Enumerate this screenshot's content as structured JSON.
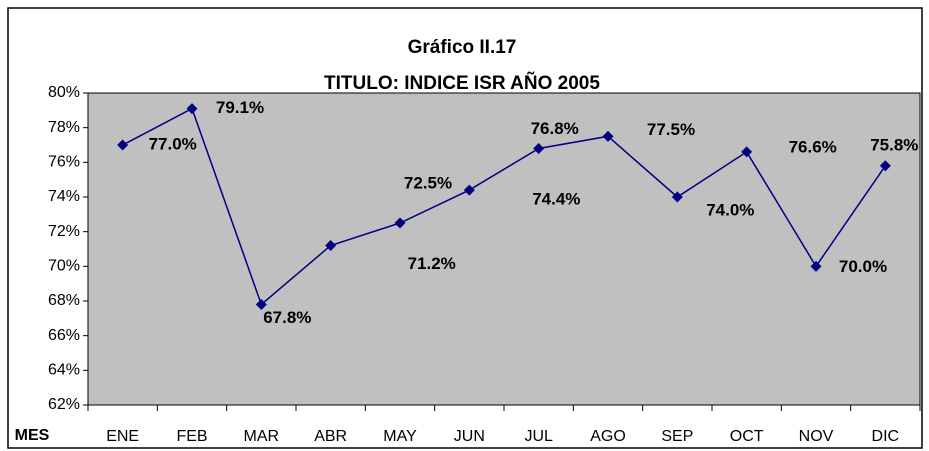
{
  "chart_data": {
    "type": "line",
    "title": "Gráfico II.17",
    "subtitle": "TITULO: INDICE ISR AÑO 2005",
    "x_label": "MES",
    "categories": [
      "ENE",
      "FEB",
      "MAR",
      "ABR",
      "MAY",
      "JUN",
      "JUL",
      "AGO",
      "SEP",
      "OCT",
      "NOV",
      "DIC"
    ],
    "series": [
      {
        "name": "INDICE ISR",
        "color": "#000080",
        "values": [
          77.0,
          79.1,
          67.8,
          71.2,
          72.5,
          74.4,
          76.8,
          77.5,
          74.0,
          76.6,
          70.0,
          75.8
        ],
        "value_labels": [
          "77.0%",
          "79.1%",
          "67.8%",
          "71.2%",
          "72.5%",
          "74.4%",
          "76.8%",
          "77.5%",
          "74.0%",
          "76.6%",
          "70.0%",
          "75.8%"
        ]
      }
    ],
    "ylim": [
      62,
      80
    ],
    "yticks": [
      {
        "value": 62,
        "label": "62%"
      },
      {
        "value": 64,
        "label": "64%"
      },
      {
        "value": 66,
        "label": "66%"
      },
      {
        "value": 68,
        "label": "68%"
      },
      {
        "value": 70,
        "label": "70%"
      },
      {
        "value": 72,
        "label": "72%"
      },
      {
        "value": 74,
        "label": "74%"
      },
      {
        "value": 76,
        "label": "76%"
      },
      {
        "value": 78,
        "label": "78%"
      },
      {
        "value": 80,
        "label": "80%"
      }
    ],
    "plot_background": "#c0c0c0"
  }
}
